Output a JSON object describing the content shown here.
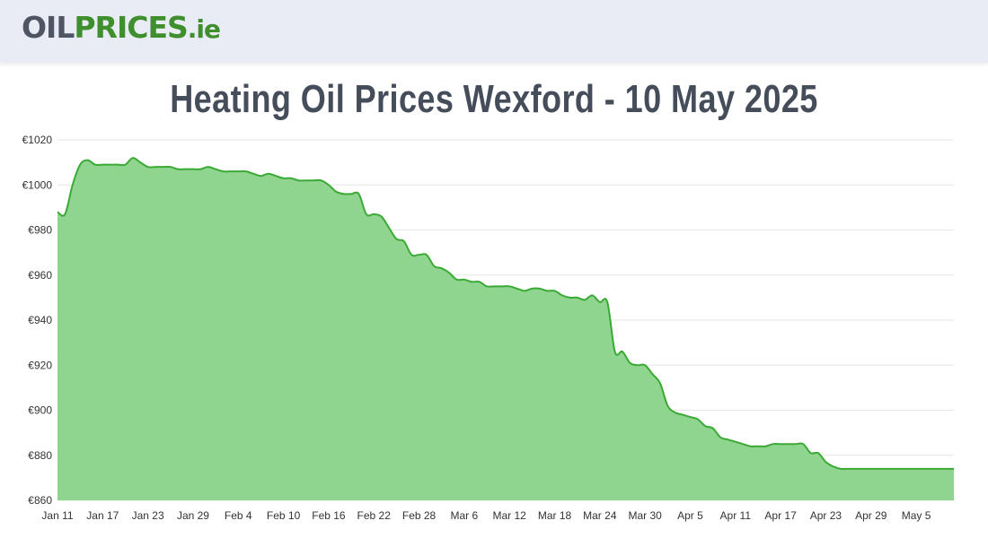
{
  "header": {
    "logo_part1": "OIL",
    "logo_part2": "PRICES",
    "logo_part3": ".ie"
  },
  "page_title": "Heating Oil Prices Wexford - 10 May 2025",
  "colors": {
    "line": "#3aaa35",
    "fill": "#8fd48f",
    "grid": "#e6e6e6"
  },
  "chart_data": {
    "type": "area",
    "title": "Heating Oil Prices Wexford - 10 May 2025",
    "xlabel": "",
    "ylabel": "",
    "ylim": [
      860,
      1020
    ],
    "yticks": [
      860,
      880,
      900,
      920,
      940,
      960,
      980,
      1000,
      1020
    ],
    "ytick_labels": [
      "€860",
      "€880",
      "€900",
      "€920",
      "€940",
      "€960",
      "€980",
      "€1000",
      "€1020"
    ],
    "x_start": "2025-01-11",
    "xticks": [
      "Jan 11",
      "Jan 17",
      "Jan 23",
      "Jan 29",
      "Feb 4",
      "Feb 10",
      "Feb 16",
      "Feb 22",
      "Feb 28",
      "Mar 6",
      "Mar 12",
      "Mar 18",
      "Mar 24",
      "Mar 30",
      "Apr 5",
      "Apr 11",
      "Apr 17",
      "Apr 23",
      "Apr 29",
      "May 5"
    ],
    "grid": true,
    "legend": "none",
    "series": [
      {
        "x": [
          "2025-01-11",
          "2025-01-12",
          "2025-01-13",
          "2025-01-14",
          "2025-01-15",
          "2025-01-16",
          "2025-01-17",
          "2025-01-18",
          "2025-01-19",
          "2025-01-20",
          "2025-01-21",
          "2025-01-22",
          "2025-01-23",
          "2025-01-24",
          "2025-01-25",
          "2025-01-26",
          "2025-01-27",
          "2025-01-28",
          "2025-01-29",
          "2025-01-30",
          "2025-01-31",
          "2025-02-01",
          "2025-02-02",
          "2025-02-03",
          "2025-02-04",
          "2025-02-05",
          "2025-02-06",
          "2025-02-07",
          "2025-02-08",
          "2025-02-09",
          "2025-02-10",
          "2025-02-11",
          "2025-02-12",
          "2025-02-13",
          "2025-02-14",
          "2025-02-15",
          "2025-02-16",
          "2025-02-17",
          "2025-02-18",
          "2025-02-19",
          "2025-02-20",
          "2025-02-21",
          "2025-02-22",
          "2025-02-23",
          "2025-02-24",
          "2025-02-25",
          "2025-02-26",
          "2025-02-27",
          "2025-02-28",
          "2025-03-01",
          "2025-03-02",
          "2025-03-03",
          "2025-03-04",
          "2025-03-05",
          "2025-03-06",
          "2025-03-07",
          "2025-03-08",
          "2025-03-09",
          "2025-03-10",
          "2025-03-11",
          "2025-03-12",
          "2025-03-13",
          "2025-03-14",
          "2025-03-15",
          "2025-03-16",
          "2025-03-17",
          "2025-03-18",
          "2025-03-19",
          "2025-03-20",
          "2025-03-21",
          "2025-03-22",
          "2025-03-23",
          "2025-03-24",
          "2025-03-25",
          "2025-03-26",
          "2025-03-27",
          "2025-03-28",
          "2025-03-29",
          "2025-03-30",
          "2025-03-31",
          "2025-04-01",
          "2025-04-02",
          "2025-04-03",
          "2025-04-04",
          "2025-04-05",
          "2025-04-06",
          "2025-04-07",
          "2025-04-08",
          "2025-04-09",
          "2025-04-10",
          "2025-04-11",
          "2025-04-12",
          "2025-04-13",
          "2025-04-14",
          "2025-04-15",
          "2025-04-16",
          "2025-04-17",
          "2025-04-18",
          "2025-04-19",
          "2025-04-20",
          "2025-04-21",
          "2025-04-22",
          "2025-04-23",
          "2025-04-24",
          "2025-04-25",
          "2025-04-26",
          "2025-04-27",
          "2025-04-28",
          "2025-04-29",
          "2025-04-30",
          "2025-05-01",
          "2025-05-02",
          "2025-05-03",
          "2025-05-04",
          "2025-05-05",
          "2025-05-06",
          "2025-05-07",
          "2025-05-08",
          "2025-05-09",
          "2025-05-10"
        ],
        "values": [
          988,
          987,
          1000,
          1009,
          1011,
          1009,
          1009,
          1009,
          1009,
          1009,
          1012,
          1010,
          1008,
          1008,
          1008,
          1008,
          1007,
          1007,
          1007,
          1007,
          1008,
          1007,
          1006,
          1006,
          1006,
          1006,
          1005,
          1004,
          1005,
          1004,
          1003,
          1003,
          1002,
          1002,
          1002,
          1002,
          1000,
          997,
          996,
          996,
          996,
          987,
          987,
          986,
          981,
          976,
          975,
          969,
          969,
          969,
          964,
          963,
          961,
          958,
          958,
          957,
          957,
          955,
          955,
          955,
          955,
          954,
          953,
          954,
          954,
          953,
          953,
          951,
          950,
          950,
          949,
          951,
          948,
          948,
          926,
          926,
          921,
          920,
          920,
          916,
          912,
          902,
          899,
          898,
          897,
          896,
          893,
          892,
          888,
          887,
          886,
          885,
          884,
          884,
          884,
          885,
          885,
          885,
          885,
          885,
          881,
          881,
          877,
          875,
          874,
          874,
          874,
          874,
          874,
          874,
          874,
          874,
          874,
          874,
          874,
          874,
          874,
          874,
          874,
          874
        ]
      }
    ]
  }
}
